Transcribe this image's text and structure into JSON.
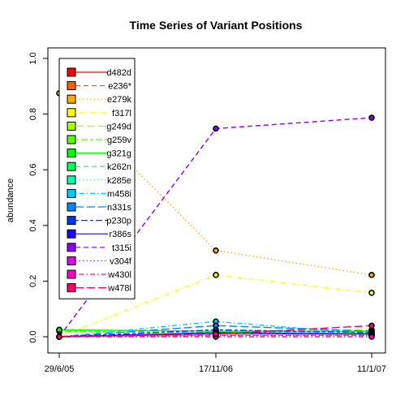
{
  "chart_data": {
    "type": "line",
    "title": "Time Series of Variant Positions",
    "xlabel": "",
    "ylabel": "abundance",
    "x": [
      "29/6/05",
      "17/11/06",
      "11/1/07"
    ],
    "ylim": [
      0,
      1
    ],
    "yticks": [
      "0.0",
      "0.2",
      "0.4",
      "0.6",
      "0.8",
      "1.0"
    ],
    "grid": false,
    "legend": "top-left",
    "series": [
      {
        "name": "d482d",
        "color": "#FF0000",
        "dash": "solid",
        "values": [
          0.0,
          0.01,
          0.01
        ]
      },
      {
        "name": "e236*",
        "color": "#FF6000",
        "dash": "dashed",
        "values": [
          0.0,
          0.005,
          0.005
        ]
      },
      {
        "name": "e279k",
        "color": "#FFAA00",
        "dash": "dotted",
        "values": [
          0.875,
          0.31,
          0.222
        ]
      },
      {
        "name": "f317l",
        "color": "#FFFF00",
        "dash": "dotdash",
        "values": [
          0.0,
          0.222,
          0.158
        ]
      },
      {
        "name": "g249d",
        "color": "#AAFF00",
        "dash": "longdash",
        "values": [
          0.025,
          0.02,
          0.025
        ]
      },
      {
        "name": "g259v",
        "color": "#55FF00",
        "dash": "twodash",
        "values": [
          0.02,
          0.015,
          0.02
        ]
      },
      {
        "name": "g321g",
        "color": "#00FF00",
        "dash": "solid",
        "values": [
          0.025,
          0.02,
          0.02
        ]
      },
      {
        "name": "k262n",
        "color": "#00FF55",
        "dash": "dashed",
        "values": [
          0.0,
          0.01,
          0.01
        ]
      },
      {
        "name": "k285e",
        "color": "#00FFAA",
        "dash": "dotted",
        "values": [
          0.0,
          0.012,
          0.01
        ]
      },
      {
        "name": "m458i",
        "color": "#00CCFF",
        "dash": "dotdash",
        "values": [
          0.0,
          0.055,
          0.01
        ]
      },
      {
        "name": "n331s",
        "color": "#0088FF",
        "dash": "longdash",
        "values": [
          0.0,
          0.04,
          0.02
        ]
      },
      {
        "name": "p230p",
        "color": "#0033FF",
        "dash": "twodash",
        "values": [
          0.0,
          0.025,
          0.015
        ]
      },
      {
        "name": "r386s",
        "color": "#2200FF",
        "dash": "solid",
        "values": [
          0.0,
          0.015,
          0.01
        ]
      },
      {
        "name": "t315i",
        "color": "#8800FF",
        "dash": "dashed",
        "values": [
          0.0,
          0.748,
          0.787
        ]
      },
      {
        "name": "v304f",
        "color": "#DD00FF",
        "dash": "dotted",
        "values": [
          0.0,
          0.005,
          0.005
        ]
      },
      {
        "name": "w430l",
        "color": "#FF00CC",
        "dash": "dotdash",
        "values": [
          0.0,
          0.0,
          0.0
        ]
      },
      {
        "name": "w478l",
        "color": "#FF0066",
        "dash": "longdash",
        "values": [
          0.0,
          0.01,
          0.04
        ]
      }
    ]
  }
}
